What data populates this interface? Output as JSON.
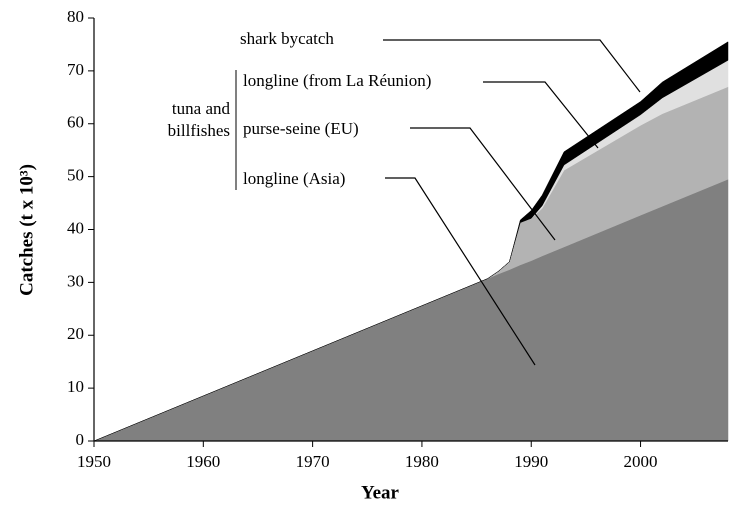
{
  "chart_data": {
    "type": "stacked_area",
    "x_label": "Year",
    "y_label": "Catches (t x 10³)",
    "group_label": [
      "tuna and",
      "billfishes"
    ],
    "x": [
      1950,
      1986,
      1987,
      1988,
      1989,
      1990,
      1991,
      1993,
      2000,
      2002,
      2008
    ],
    "series": [
      {
        "name": "longline (Asia)",
        "color": "#808080",
        "values": [
          0,
          30.7,
          31.6,
          32.4,
          33.3,
          34.1,
          35,
          36.7,
          42.7,
          44.4,
          49.5
        ]
      },
      {
        "name": "purse-seine (EU)",
        "color": "#b3b3b3",
        "values": [
          0,
          0,
          0.5,
          1.5,
          8,
          8,
          9,
          14.5,
          17,
          17.5,
          17.5
        ]
      },
      {
        "name": "longline (from La Réunion)",
        "color": "#e0e0e0",
        "values": [
          0,
          0,
          0,
          0,
          0,
          0,
          0.5,
          1,
          2,
          3,
          5
        ]
      },
      {
        "name": "shark bycatch",
        "color": "#000000",
        "values": [
          0,
          0,
          0,
          0,
          0.5,
          1.5,
          2,
          2.5,
          2.5,
          3,
          3.5
        ]
      }
    ],
    "xlim": [
      1950,
      2008
    ],
    "xticks": [
      1950,
      1960,
      1970,
      1980,
      1990,
      2000
    ],
    "ylim": [
      0,
      80
    ],
    "yticks": [
      0,
      10,
      20,
      30,
      40,
      50,
      60,
      70,
      80
    ]
  }
}
